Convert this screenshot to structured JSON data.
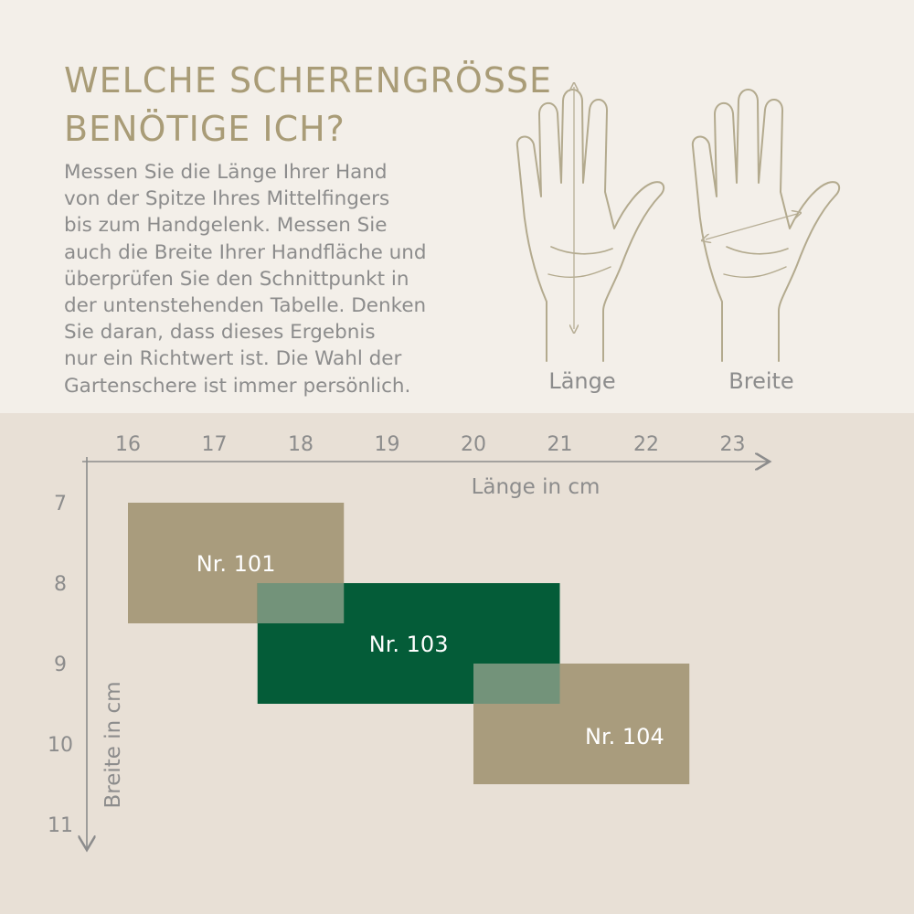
{
  "title_lines": [
    "WELCHE SCHERENGRÖSSE",
    "BENÖTIGE ICH?"
  ],
  "description_lines": [
    "Messen Sie die Länge Ihrer Hand",
    "von der Spitze Ihres Mittelfingers",
    "bis zum Handgelenk. Messen Sie",
    "auch die Breite Ihrer Handfläche und",
    "überprüfen Sie den Schnittpunkt in",
    "der untenstehenden Tabelle. Denken",
    "Sie daran, dass dieses Ergebnis",
    "nur ein Richtwert ist. Die Wahl der",
    "Gartenschere ist immer persönlich."
  ],
  "hands": {
    "left_label": "Länge",
    "right_label": "Breite"
  },
  "colors": {
    "khaki": "#a99c7d",
    "green": "#045c38",
    "overlap": "#73937a",
    "text_gray": "#8c8c8c",
    "title": "#a99c77",
    "axis": "#8c8c8c"
  },
  "chart_data": {
    "type": "range-rectangles",
    "xlabel": "Länge in cm",
    "ylabel": "Breite in cm",
    "x_ticks": [
      16,
      17,
      18,
      19,
      20,
      21,
      22,
      23
    ],
    "y_ticks": [
      7,
      8,
      9,
      10,
      11
    ],
    "x_axis_position": "top",
    "y_axis_inverted": true,
    "grid": false,
    "series": [
      {
        "name": "Nr. 101",
        "x": [
          16,
          18.5
        ],
        "y": [
          7,
          8.5
        ],
        "color": "khaki"
      },
      {
        "name": "Nr. 103",
        "x": [
          17.5,
          21
        ],
        "y": [
          8,
          9.5
        ],
        "color": "green"
      },
      {
        "name": "Nr. 104",
        "x": [
          20,
          22.5
        ],
        "y": [
          9,
          10.5
        ],
        "color": "khaki"
      }
    ]
  }
}
